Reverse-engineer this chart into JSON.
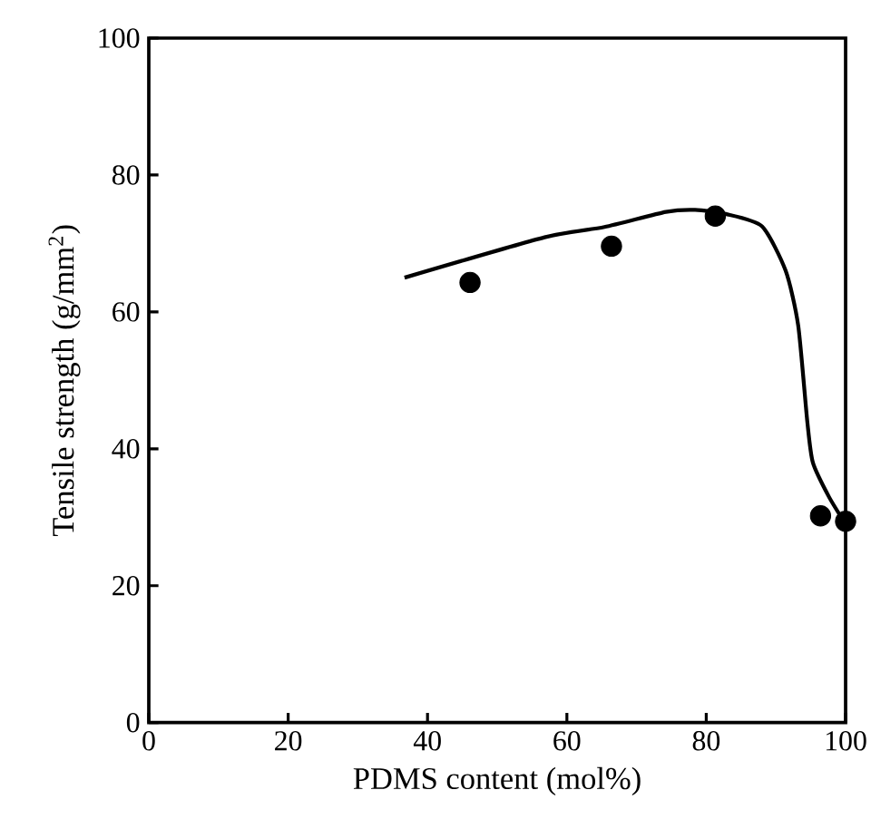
{
  "chart_data": {
    "type": "scatter",
    "xlabel": "PDMS content (mol%)",
    "ylabel": "Tensile strength (g/mm$^{2}$)",
    "xlim": [
      0,
      100
    ],
    "ylim": [
      0,
      100
    ],
    "xticks": [
      0,
      20,
      40,
      60,
      80,
      100
    ],
    "yticks": [
      0,
      20,
      40,
      60,
      80,
      100
    ],
    "series": [
      {
        "marker": "circle",
        "color": "#000000",
        "x": [
          46.1,
          66.4,
          81.3,
          96.4,
          100
        ],
        "values": [
          64.3,
          69.6,
          74,
          30.2,
          29.4
        ]
      },
      {
        "type": "line",
        "marker": "none",
        "line_style": "solid",
        "color": "#000000",
        "x": [
          36.7,
          56.8,
          65.4,
          74.2,
          78.4,
          82.8,
          88,
          91.4,
          93.2,
          94.5,
          95.3,
          97.6,
          100
        ],
        "values": [
          65,
          70.9,
          72.4,
          74.6,
          74.9,
          74.3,
          72.5,
          66,
          58,
          44,
          38,
          33,
          29
        ]
      }
    ]
  }
}
